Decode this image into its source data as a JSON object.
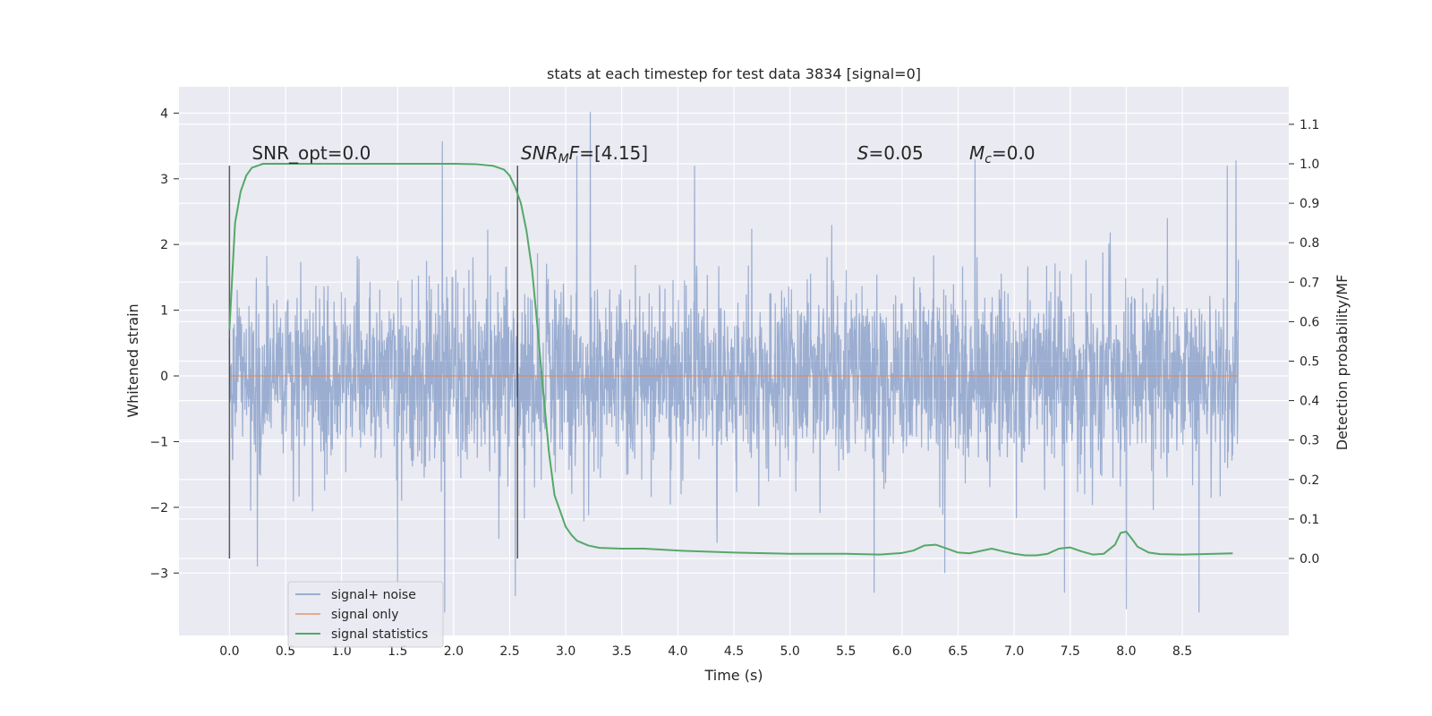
{
  "chart_data": {
    "type": "line",
    "title": "stats at each timestep for test data 3834 [signal=0]",
    "xlabel": "Time (s)",
    "ylabel_left": "Whitened strain",
    "ylabel_right": "Detection probability/MF",
    "xlim": [
      -0.45,
      9.45
    ],
    "ylim_left": [
      -3.95,
      4.4
    ],
    "ylim_right": [
      -0.195,
      1.195
    ],
    "x_ticks": [
      "0.0",
      "0.5",
      "1.0",
      "1.5",
      "2.0",
      "2.5",
      "3.0",
      "3.5",
      "4.0",
      "4.5",
      "5.0",
      "5.5",
      "6.0",
      "6.5",
      "7.0",
      "7.5",
      "8.0",
      "8.5"
    ],
    "y_ticks_left": [
      "−3",
      "−2",
      "−1",
      "0",
      "1",
      "2",
      "3",
      "4"
    ],
    "y_ticks_right": [
      "0.0",
      "0.1",
      "0.2",
      "0.3",
      "0.4",
      "0.5",
      "0.6",
      "0.7",
      "0.8",
      "0.9",
      "1.0",
      "1.1"
    ],
    "grid": true,
    "legend_position": "lower-left",
    "annotations": {
      "snr_opt": {
        "pre": "SNR_opt=0.0",
        "x": 0.2,
        "y": 3.3
      },
      "snr_mf": {
        "main": "SNR",
        "sub": "M",
        "mid": "F",
        "post": "=[4.15]",
        "x": 2.6,
        "y": 3.3
      },
      "s": {
        "main": "S",
        "post": "=0.05",
        "x": 5.6,
        "y": 3.3
      },
      "mc": {
        "main": "M",
        "sub": "c",
        "post": "=0.0",
        "x": 6.6,
        "y": 3.3
      }
    },
    "vlines": [
      {
        "x": 0.0,
        "ymin": -2.78,
        "ymax": 3.2
      },
      {
        "x": 2.57,
        "ymin": -2.78,
        "ymax": 3.2
      }
    ],
    "series": [
      {
        "name": "signal+ noise",
        "color": "#4c72b0",
        "axis": "left",
        "x_range": [
          0.0,
          9.0
        ],
        "noise_std": 0.72,
        "visible_peaks": [
          {
            "x": 3.22,
            "y": 4.02
          },
          {
            "x": 1.9,
            "y": 3.57
          },
          {
            "x": 8.98,
            "y": 3.28
          },
          {
            "x": 3.1,
            "y": 3.35
          },
          {
            "x": 4.15,
            "y": 3.2
          },
          {
            "x": 6.65,
            "y": 3.3
          },
          {
            "x": 8.9,
            "y": 3.2
          },
          {
            "x": 1.92,
            "y": -3.6
          },
          {
            "x": 2.55,
            "y": -3.35
          },
          {
            "x": 8.65,
            "y": -3.6
          },
          {
            "x": 8.0,
            "y": -3.55
          },
          {
            "x": 7.45,
            "y": -3.3
          },
          {
            "x": 5.75,
            "y": -3.3
          },
          {
            "x": 1.5,
            "y": -3.25
          },
          {
            "x": 0.25,
            "y": -2.9
          }
        ]
      },
      {
        "name": "signal only",
        "color": "#dd8452",
        "axis": "left",
        "x": [
          0.0,
          9.0
        ],
        "y": [
          0.0,
          0.0
        ]
      },
      {
        "name": "signal statistics",
        "color": "#55a868",
        "axis": "right",
        "x": [
          0.0,
          0.05,
          0.1,
          0.15,
          0.2,
          0.25,
          0.3,
          0.5,
          1.0,
          1.5,
          2.0,
          2.2,
          2.35,
          2.45,
          2.5,
          2.55,
          2.6,
          2.65,
          2.7,
          2.75,
          2.8,
          2.85,
          2.9,
          2.95,
          3.0,
          3.05,
          3.1,
          3.2,
          3.3,
          3.5,
          3.7,
          4.0,
          4.5,
          5.0,
          5.5,
          5.8,
          6.0,
          6.1,
          6.2,
          6.3,
          6.4,
          6.5,
          6.6,
          6.7,
          6.8,
          6.9,
          7.0,
          7.1,
          7.2,
          7.3,
          7.4,
          7.5,
          7.6,
          7.7,
          7.8,
          7.9,
          7.95,
          8.0,
          8.05,
          8.1,
          8.2,
          8.3,
          8.5,
          8.8,
          8.95
        ],
        "y": [
          0.58,
          0.85,
          0.93,
          0.97,
          0.99,
          0.995,
          1.0,
          1.0,
          1.0,
          1.0,
          1.0,
          0.999,
          0.995,
          0.985,
          0.97,
          0.94,
          0.9,
          0.83,
          0.73,
          0.58,
          0.42,
          0.27,
          0.16,
          0.12,
          0.08,
          0.06,
          0.045,
          0.033,
          0.027,
          0.025,
          0.025,
          0.02,
          0.015,
          0.012,
          0.012,
          0.01,
          0.014,
          0.02,
          0.033,
          0.035,
          0.025,
          0.015,
          0.013,
          0.019,
          0.025,
          0.018,
          0.012,
          0.008,
          0.008,
          0.012,
          0.025,
          0.028,
          0.018,
          0.01,
          0.012,
          0.035,
          0.065,
          0.068,
          0.05,
          0.03,
          0.015,
          0.011,
          0.01,
          0.012,
          0.013
        ]
      }
    ]
  }
}
